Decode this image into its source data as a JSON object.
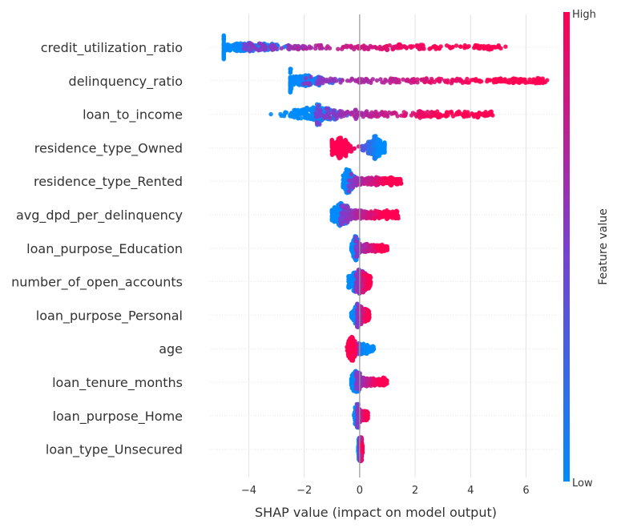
{
  "chart_data": {
    "type": "scatter",
    "subtype": "beeswarm",
    "xlabel": "SHAP value (impact on model output)",
    "xlim": [
      -5.4,
      7.2
    ],
    "xticks": [
      -4,
      -2,
      0,
      2,
      4,
      6
    ],
    "xtick_labels": [
      "−4",
      "−2",
      "0",
      "2",
      "4",
      "6"
    ],
    "grid": true,
    "features": [
      {
        "name": "credit_utilization_ratio",
        "min": -4.9,
        "max": 5.3,
        "low_center": -4.2,
        "low_spread": 0.8,
        "high_center": 2.8
      },
      {
        "name": "delinquency_ratio",
        "min": -2.5,
        "max": 6.8,
        "low_center": -2.1,
        "low_spread": 0.45,
        "high_center": 3.5
      },
      {
        "name": "loan_to_income",
        "min": -3.2,
        "max": 4.8,
        "low_center": -1.6,
        "low_spread": 0.5,
        "high_center": 1.5
      },
      {
        "name": "residence_type_Owned",
        "min": -1.0,
        "max": 0.9,
        "low_center": 0.6,
        "low_spread": 0.2,
        "high_center": -0.7
      },
      {
        "name": "residence_type_Rented",
        "min": -0.6,
        "max": 1.5,
        "low_center": -0.4,
        "low_spread": 0.12,
        "high_center": 1.1
      },
      {
        "name": "avg_dpd_per_delinquency",
        "min": -1.0,
        "max": 1.4,
        "low_center": -0.7,
        "low_spread": 0.2,
        "high_center": 0.4
      },
      {
        "name": "loan_purpose_Education",
        "min": -0.3,
        "max": 1.0,
        "low_center": -0.15,
        "low_spread": 0.08,
        "high_center": 0.7
      },
      {
        "name": "number_of_open_accounts",
        "min": -0.4,
        "max": 0.4,
        "low_center": -0.15,
        "low_spread": 0.15,
        "high_center": 0.2
      },
      {
        "name": "loan_purpose_Personal",
        "min": -0.3,
        "max": 0.35,
        "low_center": -0.1,
        "low_spread": 0.1,
        "high_center": 0.2
      },
      {
        "name": "age",
        "min": -0.8,
        "max": 0.5,
        "low_center": 0.1,
        "low_spread": 0.2,
        "high_center": -0.3
      },
      {
        "name": "loan_tenure_months",
        "min": -0.3,
        "max": 1.0,
        "low_center": -0.15,
        "low_spread": 0.1,
        "high_center": 0.4
      },
      {
        "name": "loan_purpose_Home",
        "min": -0.2,
        "max": 0.3,
        "low_center": -0.1,
        "low_spread": 0.05,
        "high_center": 0.15
      },
      {
        "name": "loan_type_Unsecured",
        "min": -0.05,
        "max": 0.1,
        "low_center": 0.0,
        "low_spread": 0.03,
        "high_center": 0.05
      }
    ],
    "colorbar": {
      "high_label": "High",
      "low_label": "Low",
      "title": "Feature value",
      "low_color": "#008bfb",
      "high_color": "#ff0052"
    }
  }
}
